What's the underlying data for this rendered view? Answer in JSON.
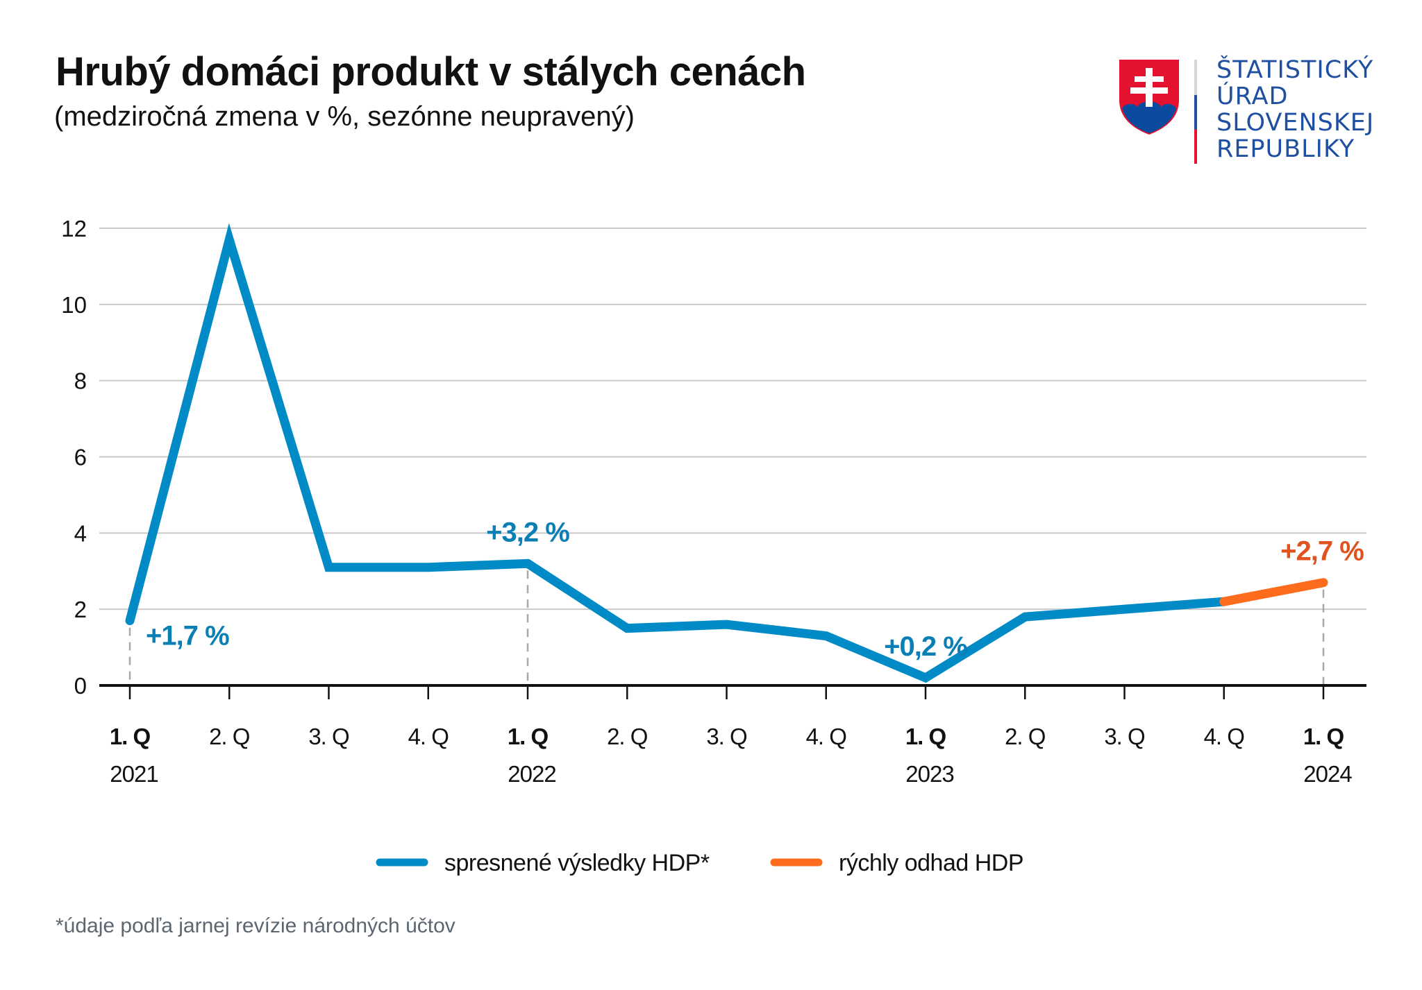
{
  "header": {
    "title": "Hrubý domáci produkt v stálych cenách",
    "subtitle": "(medziročná zmena v %, sezónne neupravený)"
  },
  "logo": {
    "icon": "slovak-coat-of-arms-icon",
    "lines": [
      "ŠTATISTICKÝ",
      "ÚRAD",
      "SLOVENSKEJ",
      "REPUBLIKY"
    ],
    "text_color": "#1f4fa0"
  },
  "chart_data": {
    "type": "line",
    "title": "Hrubý domáci produkt v stálych cenách",
    "subtitle": "(medziročná zmena v %, sezónne neupravený)",
    "xlabel": "",
    "ylabel": "",
    "ylim": [
      0,
      12
    ],
    "yticks": [
      0,
      2,
      4,
      6,
      8,
      10,
      12
    ],
    "grid": true,
    "categories": [
      "1. Q",
      "2. Q",
      "3. Q",
      "4. Q",
      "1. Q",
      "2. Q",
      "3. Q",
      "4. Q",
      "1. Q",
      "2. Q",
      "3. Q",
      "4. Q",
      "1. Q"
    ],
    "category_bold": [
      true,
      false,
      false,
      false,
      true,
      false,
      false,
      false,
      true,
      false,
      false,
      false,
      true
    ],
    "year_labels": [
      {
        "index": 0,
        "label": "2021"
      },
      {
        "index": 4,
        "label": "2022"
      },
      {
        "index": 8,
        "label": "2023"
      },
      {
        "index": 12,
        "label": "2024"
      }
    ],
    "series": [
      {
        "name": "spresnené výsledky HDP*",
        "color": "#008bc6",
        "start_index": 0,
        "values": [
          1.7,
          11.7,
          3.1,
          3.1,
          3.2,
          1.5,
          1.6,
          1.3,
          0.2,
          1.8,
          2.0,
          2.2
        ]
      },
      {
        "name": "rýchly odhad HDP",
        "color": "#fd6b1c",
        "start_index": 11,
        "values": [
          2.2,
          2.7
        ]
      }
    ],
    "annotations": [
      {
        "index": 0,
        "value": 1.7,
        "text": "+1,7 %",
        "color": "#0a7fb5",
        "position": "below-right"
      },
      {
        "index": 4,
        "value": 3.2,
        "text": "+3,2 %",
        "color": "#0a7fb5",
        "position": "above"
      },
      {
        "index": 8,
        "value": 0.2,
        "text": "+0,2 %",
        "color": "#0a7fb5",
        "position": "above"
      },
      {
        "index": 12,
        "value": 2.7,
        "text": "+2,7 %",
        "color": "#e0531f",
        "position": "above"
      }
    ],
    "dashed_guides_at": [
      0,
      4,
      12
    ],
    "legend": {
      "position": "bottom-center"
    }
  },
  "footnote": "*údaje podľa jarnej revízie národných účtov"
}
